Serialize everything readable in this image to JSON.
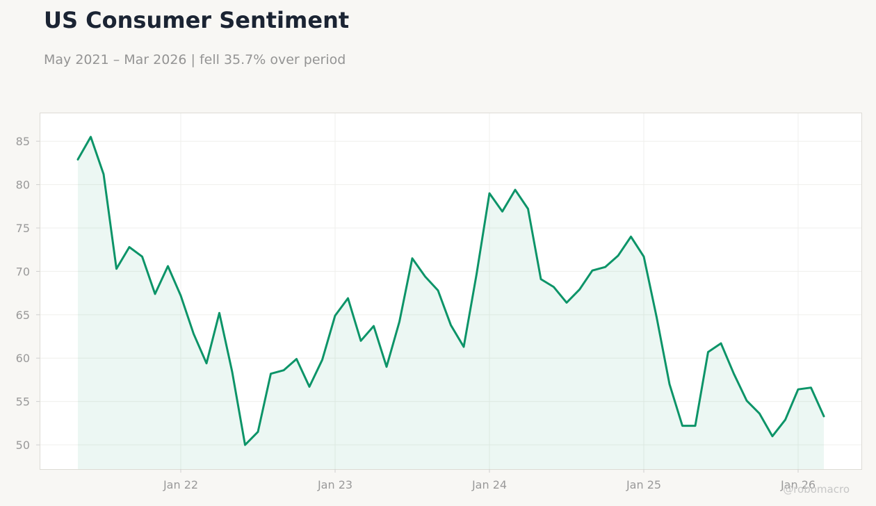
{
  "chart_data": {
    "type": "line",
    "title": "US Consumer Sentiment",
    "subtitle": "May 2021 – Mar 2026 | fell 35.7% over period",
    "xlabel": "",
    "ylabel": "",
    "ylim": [
      47.2,
      88.3
    ],
    "yticks": [
      50,
      55,
      60,
      65,
      70,
      75,
      80,
      85
    ],
    "xticks": [
      {
        "date": "2022-01",
        "label": "Jan 22"
      },
      {
        "date": "2023-01",
        "label": "Jan 23"
      },
      {
        "date": "2024-01",
        "label": "Jan 24"
      },
      {
        "date": "2025-01",
        "label": "Jan 25"
      },
      {
        "date": "2026-01",
        "label": "Jan 26"
      }
    ],
    "grid": true,
    "legend": "none",
    "colors": {
      "line": "#0c9468",
      "fill": "#0c9468"
    },
    "series": [
      {
        "x": [
          "2021-05",
          "2021-06",
          "2021-07",
          "2021-08",
          "2021-09",
          "2021-10",
          "2021-11",
          "2021-12",
          "2022-01",
          "2022-02",
          "2022-03",
          "2022-04",
          "2022-05",
          "2022-06",
          "2022-07",
          "2022-08",
          "2022-09",
          "2022-10",
          "2022-11",
          "2022-12",
          "2023-01",
          "2023-02",
          "2023-03",
          "2023-04",
          "2023-05",
          "2023-06",
          "2023-07",
          "2023-08",
          "2023-09",
          "2023-10",
          "2023-11",
          "2023-12",
          "2024-01",
          "2024-02",
          "2024-03",
          "2024-04",
          "2024-05",
          "2024-06",
          "2024-07",
          "2024-08",
          "2024-09",
          "2024-10",
          "2024-11",
          "2024-12",
          "2025-01",
          "2025-02",
          "2025-03",
          "2025-04",
          "2025-05",
          "2025-06",
          "2025-07",
          "2025-08",
          "2025-09",
          "2025-10",
          "2025-11",
          "2025-12",
          "2026-01",
          "2026-02",
          "2026-03"
        ],
        "values": [
          82.9,
          85.5,
          81.2,
          70.3,
          72.8,
          71.7,
          67.4,
          70.6,
          67.2,
          62.8,
          59.4,
          65.2,
          58.4,
          50.0,
          51.5,
          58.2,
          58.6,
          59.9,
          56.7,
          59.8,
          64.9,
          66.9,
          62.0,
          63.7,
          59.0,
          64.2,
          71.5,
          69.4,
          67.8,
          63.8,
          61.3,
          69.7,
          79.0,
          76.9,
          79.4,
          77.2,
          69.1,
          68.2,
          66.4,
          67.9,
          70.1,
          70.5,
          71.8,
          74.0,
          71.7,
          64.7,
          57.0,
          52.2,
          52.2,
          60.7,
          61.7,
          58.2,
          55.1,
          53.6,
          51.0,
          52.9,
          56.4,
          56.6,
          53.3
        ]
      }
    ]
  },
  "watermark": "@robomacro"
}
